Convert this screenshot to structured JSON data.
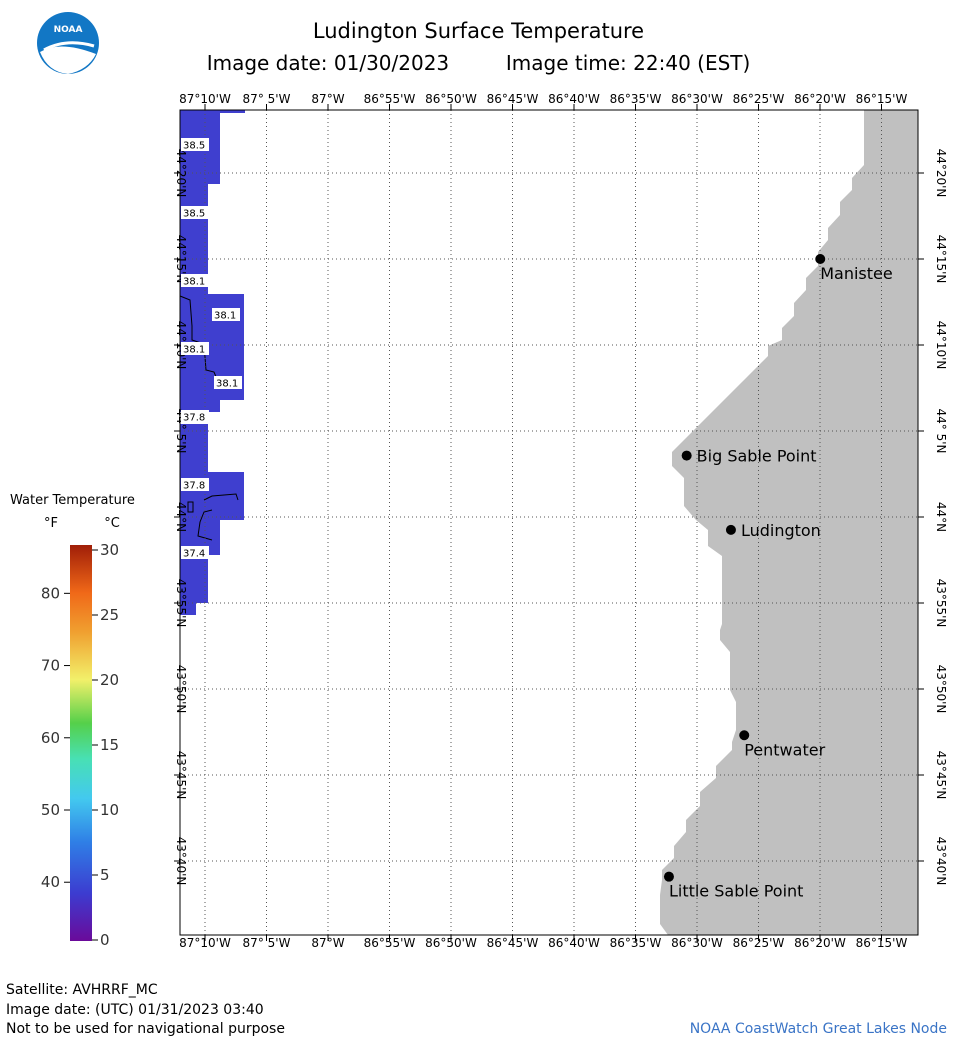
{
  "header": {
    "title": "Ludington Surface Temperature",
    "image_date_label": "Image date: 01/30/2023",
    "image_time_label": "Image time: 22:40 (EST)"
  },
  "logo": {
    "text": "NOAA",
    "color": "#1277c5"
  },
  "map": {
    "lon_ticks": [
      "87°10'W",
      "87° 5'W",
      "87°W",
      "86°55'W",
      "86°50'W",
      "86°45'W",
      "86°40'W",
      "86°35'W",
      "86°30'W",
      "86°25'W",
      "86°20'W",
      "86°15'W"
    ],
    "lat_ticks": [
      "44°20'N",
      "44°15'N",
      "44°10'N",
      "44° 5'N",
      "44°N",
      "43°55'N",
      "43°50'N",
      "43°45'N",
      "43°40'N"
    ],
    "land_color": "#c0c0c0",
    "water_color": "#3f3fcf",
    "cities": [
      {
        "name": "Manistee",
        "lon": -86.333,
        "lat": 44.25
      },
      {
        "name": "Big Sable Point",
        "lon": -86.514,
        "lat": 44.0595
      },
      {
        "name": "Ludington",
        "lon": -86.454,
        "lat": 43.9875
      },
      {
        "name": "Pentwater",
        "lon": -86.436,
        "lat": 43.7885
      },
      {
        "name": "Little Sable Point",
        "lon": -86.538,
        "lat": 43.6515
      }
    ],
    "temperature_labels": [
      "38.5",
      "38.5",
      "38.1",
      "38.1",
      "38.1",
      "38.1",
      "37.8",
      "37.8",
      "37.4"
    ]
  },
  "legend": {
    "title": "Water Temperature",
    "unit_f": "°F",
    "unit_c": "°C",
    "f_ticks": [
      "80",
      "70",
      "60",
      "50",
      "40"
    ],
    "c_ticks": [
      "30",
      "25",
      "20",
      "15",
      "10",
      "5",
      "0"
    ]
  },
  "footer": {
    "satellite": "Satellite: AVHRRF_MC",
    "utc_date": "Image date: (UTC) 01/31/2023  03:40",
    "disclaimer": "Not to be used for navigational purpose",
    "credit": "NOAA CoastWatch Great Lakes Node"
  }
}
